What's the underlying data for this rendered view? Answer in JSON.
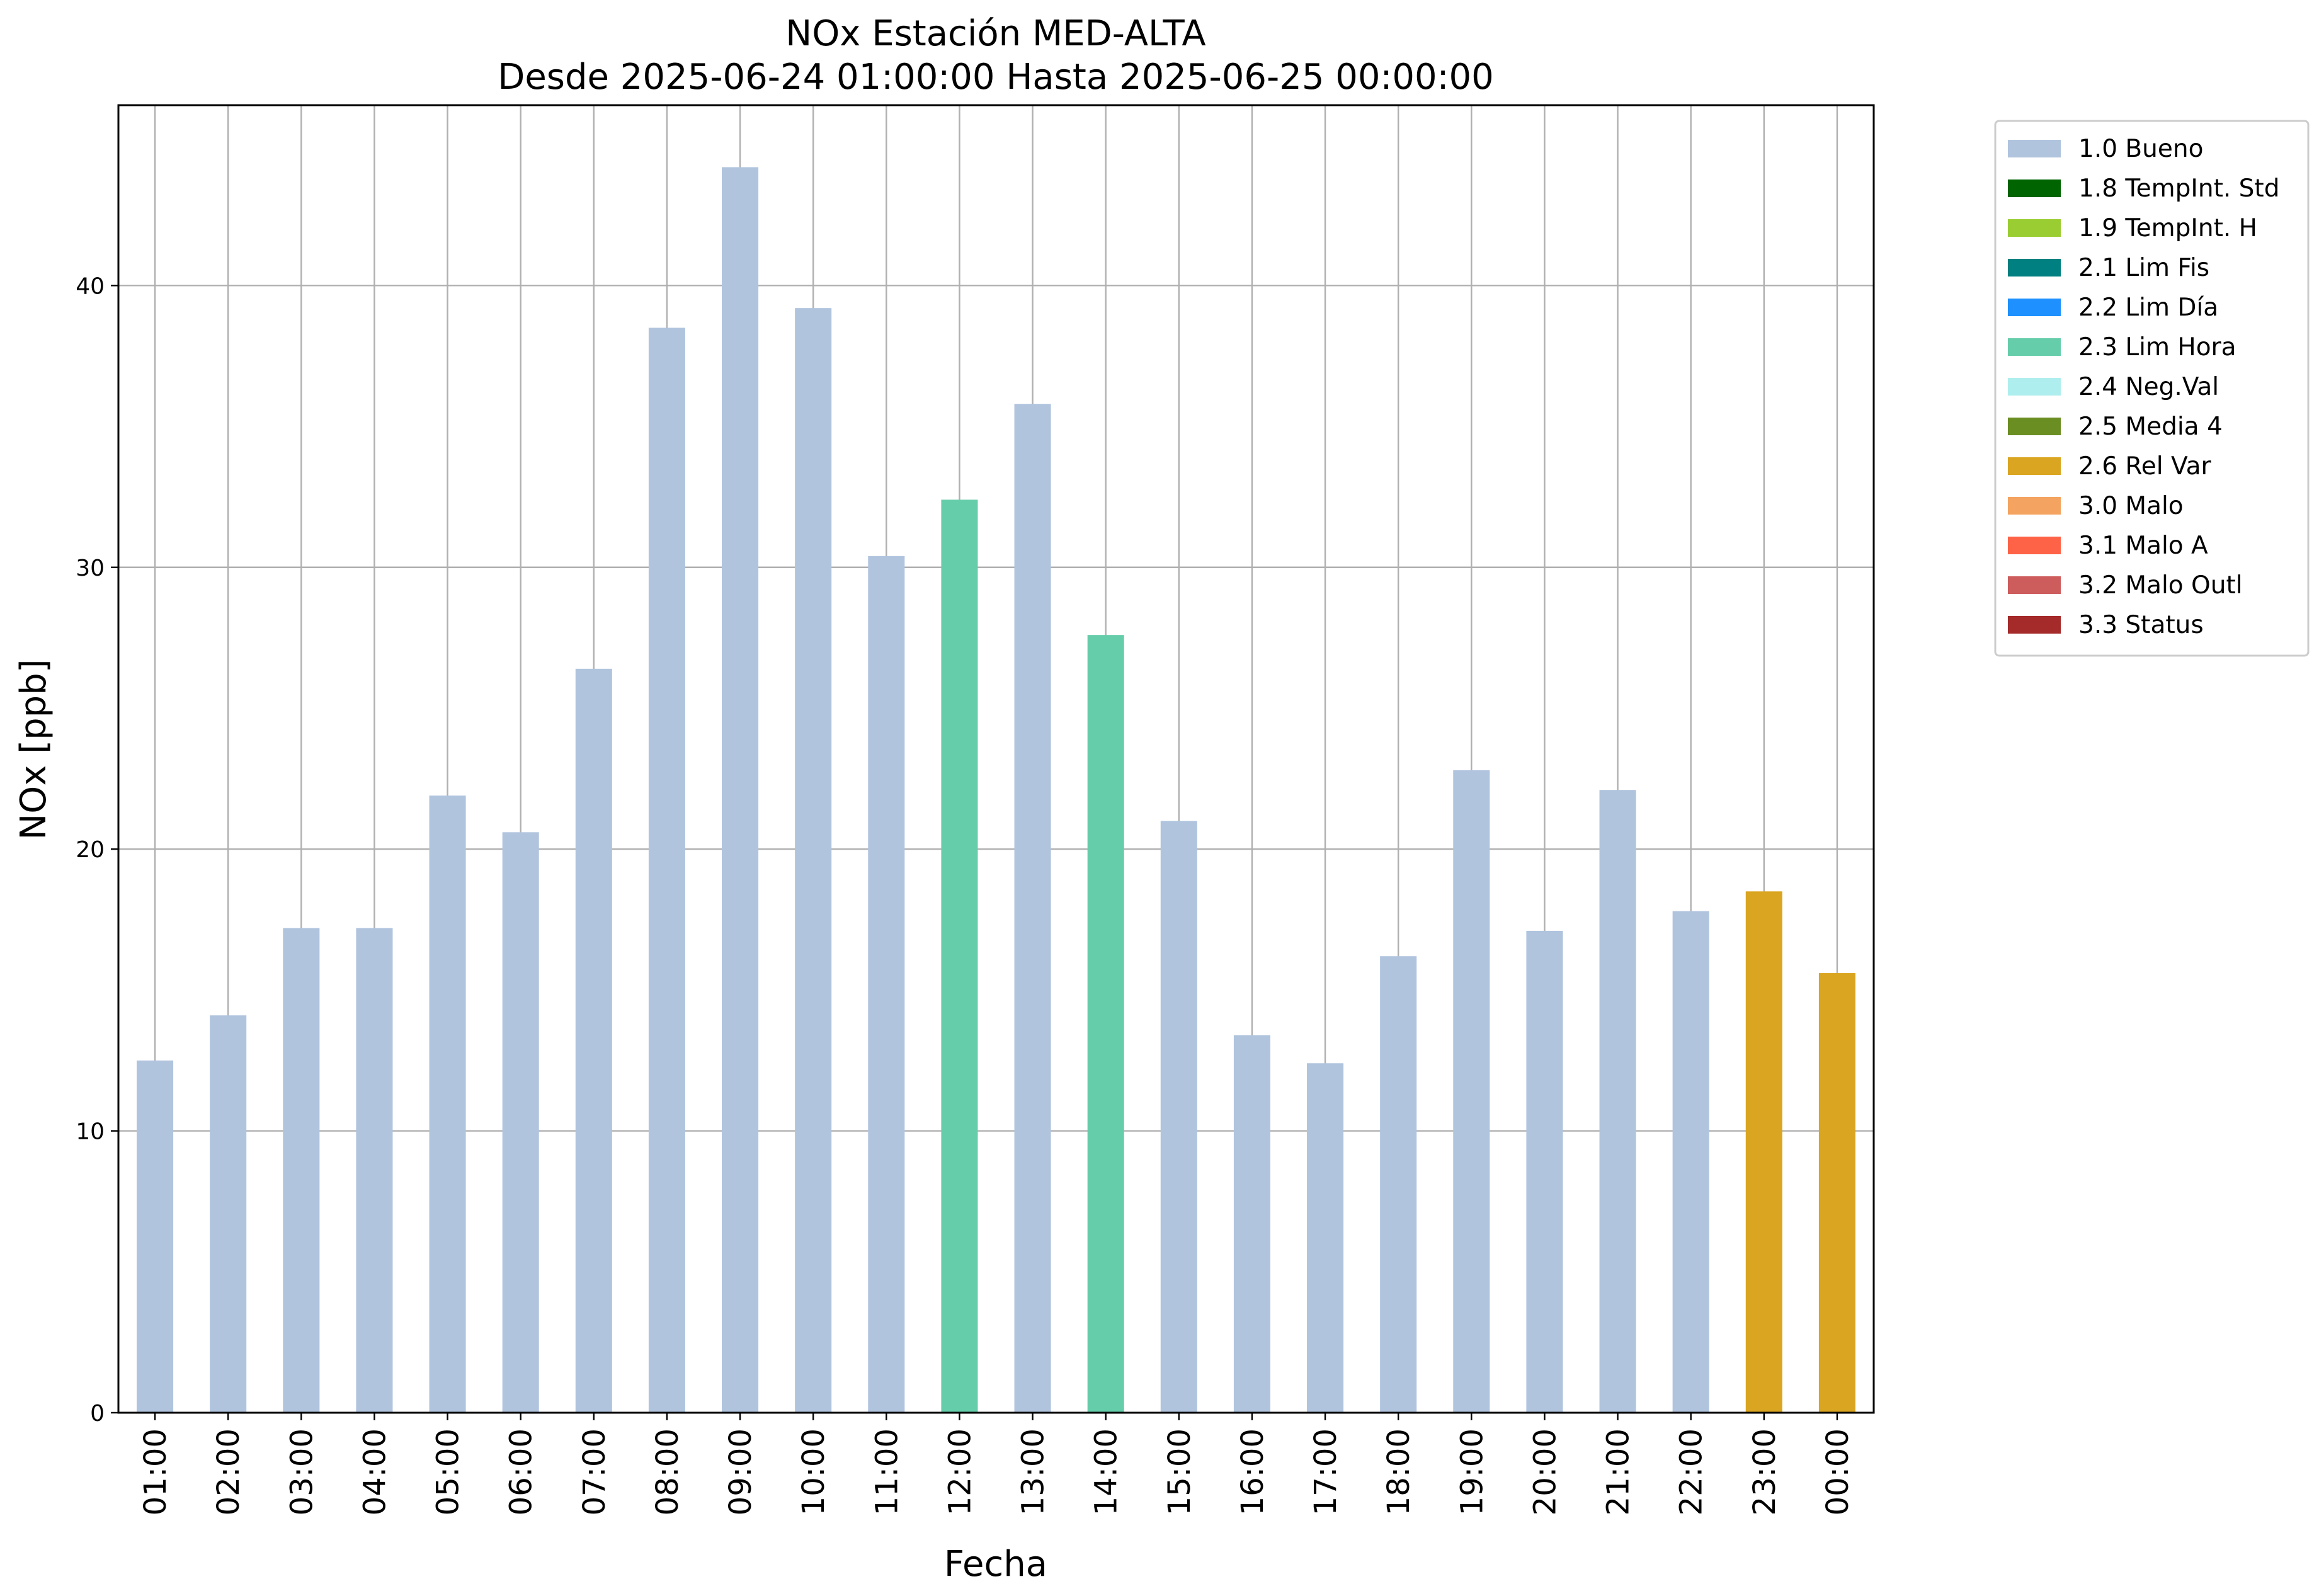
{
  "chart_data": {
    "type": "bar",
    "title": "NOx Estación MED-ALTA",
    "subtitle": "Desde 2025-06-24 01:00:00 Hasta 2025-06-25 00:00:00",
    "xlabel": "Fecha",
    "ylabel": "NOx [ppb]",
    "ylim": [
      0,
      46.4
    ],
    "yticks": [
      0,
      10,
      20,
      30,
      40
    ],
    "grid": true,
    "legend_position": "outside-top-right",
    "categories": [
      "01:00",
      "02:00",
      "03:00",
      "04:00",
      "05:00",
      "06:00",
      "07:00",
      "08:00",
      "09:00",
      "10:00",
      "11:00",
      "12:00",
      "13:00",
      "14:00",
      "15:00",
      "16:00",
      "17:00",
      "18:00",
      "19:00",
      "20:00",
      "21:00",
      "22:00",
      "23:00",
      "00:00"
    ],
    "values": [
      12.5,
      14.1,
      17.2,
      17.2,
      21.9,
      20.6,
      26.4,
      38.5,
      44.2,
      39.2,
      30.4,
      32.4,
      35.8,
      27.6,
      21.0,
      13.4,
      12.4,
      16.2,
      22.8,
      17.1,
      22.1,
      17.8,
      18.5,
      15.6
    ],
    "flags": [
      "1.0",
      "1.0",
      "1.0",
      "1.0",
      "1.0",
      "1.0",
      "1.0",
      "1.0",
      "1.0",
      "1.0",
      "1.0",
      "2.3",
      "1.0",
      "2.3",
      "1.0",
      "1.0",
      "1.0",
      "1.0",
      "1.0",
      "1.0",
      "1.0",
      "1.0",
      "2.6",
      "2.6"
    ],
    "legend": [
      {
        "code": "1.0",
        "label": "1.0 Bueno",
        "color": "#b0c4de"
      },
      {
        "code": "1.8",
        "label": "1.8 TempInt. Std",
        "color": "#006400"
      },
      {
        "code": "1.9",
        "label": "1.9 TempInt. H",
        "color": "#9acd32"
      },
      {
        "code": "2.1",
        "label": "2.1 Lim Fis",
        "color": "#008080"
      },
      {
        "code": "2.2",
        "label": "2.2 Lim Día",
        "color": "#1e90ff"
      },
      {
        "code": "2.3",
        "label": "2.3 Lim Hora",
        "color": "#66cdaa"
      },
      {
        "code": "2.4",
        "label": "2.4 Neg.Val",
        "color": "#afeeee"
      },
      {
        "code": "2.5",
        "label": "2.5 Media 4",
        "color": "#6b8e23"
      },
      {
        "code": "2.6",
        "label": "2.6 Rel Var",
        "color": "#daa520"
      },
      {
        "code": "3.0",
        "label": "3.0 Malo",
        "color": "#f4a460"
      },
      {
        "code": "3.1",
        "label": "3.1 Malo A",
        "color": "#ff6347"
      },
      {
        "code": "3.2",
        "label": "3.2 Malo Outl",
        "color": "#cd5c5c"
      },
      {
        "code": "3.3",
        "label": "3.3 Status",
        "color": "#a52a2a"
      }
    ]
  }
}
